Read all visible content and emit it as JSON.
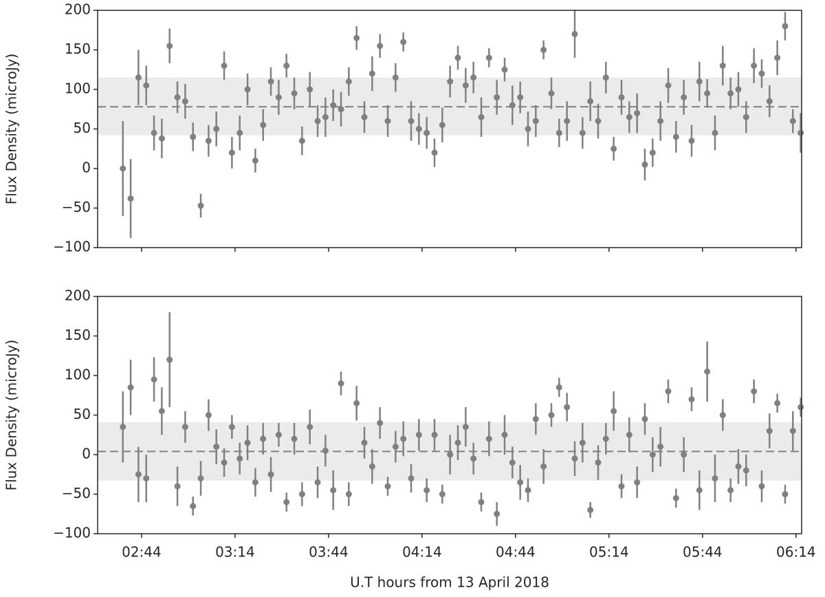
{
  "chart_data": [
    {
      "type": "errorbar",
      "ylabel": "Flux Density (microJy)",
      "color": "#808080",
      "band_color": "#ebebeb",
      "mean": 78,
      "band": [
        42,
        115
      ],
      "xlim": [
        149.9,
        375.8
      ],
      "ylim": [
        -100,
        200
      ],
      "yticks": [
        {
          "value": -100,
          "label": "−100"
        },
        {
          "value": -50,
          "label": "−50"
        },
        0,
        50,
        100,
        150,
        200
      ],
      "x": [
        158,
        160.5,
        163,
        165.5,
        168,
        170.5,
        173,
        175.5,
        178,
        180.5,
        183,
        185.5,
        188,
        190.5,
        193,
        195.5,
        198,
        200.5,
        203,
        205.5,
        208,
        210.5,
        213,
        215.5,
        218,
        220.5,
        223,
        225.5,
        228,
        230.5,
        233,
        235.5,
        238,
        240.5,
        243,
        245.5,
        248,
        250.5,
        253,
        255.5,
        258,
        260.5,
        263,
        265.5,
        268,
        270.5,
        273,
        275.5,
        278,
        280.5,
        283,
        285.5,
        288,
        290.5,
        293,
        295.5,
        298,
        300.5,
        303,
        305.5,
        308,
        310.5,
        313,
        315.5,
        318,
        320.5,
        323,
        325.5,
        328,
        330.5,
        333,
        335.5,
        338,
        340.5,
        343,
        345.5,
        348,
        350.5,
        353,
        355.5,
        358,
        360.5,
        363,
        365.5,
        368,
        370.5,
        373,
        375.5
      ],
      "values": [
        0,
        -38,
        115,
        105,
        45,
        38,
        155,
        90,
        85,
        40,
        -47,
        35,
        50,
        130,
        20,
        45,
        100,
        10,
        55,
        110,
        90,
        130,
        95,
        35,
        100,
        60,
        65,
        80,
        75,
        110,
        165,
        65,
        120,
        155,
        60,
        115,
        160,
        60,
        50,
        45,
        20,
        55,
        110,
        140,
        105,
        115,
        65,
        140,
        90,
        125,
        80,
        90,
        50,
        60,
        150,
        95,
        45,
        60,
        170,
        45,
        85,
        60,
        115,
        25,
        90,
        65,
        70,
        5,
        20,
        60,
        105,
        40,
        90,
        35,
        110,
        95,
        45,
        130,
        95,
        100,
        65,
        130,
        120,
        85,
        140,
        180,
        60,
        45
      ],
      "errors": [
        60,
        50,
        35,
        25,
        22,
        25,
        22,
        20,
        22,
        18,
        15,
        20,
        22,
        18,
        20,
        22,
        20,
        15,
        20,
        18,
        22,
        15,
        20,
        18,
        22,
        20,
        25,
        20,
        22,
        18,
        15,
        20,
        22,
        15,
        20,
        18,
        12,
        25,
        20,
        20,
        18,
        22,
        20,
        15,
        22,
        20,
        25,
        12,
        22,
        15,
        25,
        20,
        22,
        20,
        12,
        20,
        18,
        25,
        30,
        20,
        25,
        22,
        20,
        15,
        22,
        20,
        25,
        20,
        18,
        25,
        22,
        20,
        22,
        20,
        25,
        18,
        22,
        25,
        20,
        22,
        20,
        22,
        18,
        20,
        22,
        18,
        15,
        25
      ]
    },
    {
      "type": "errorbar",
      "ylabel": "Flux Density (microJy)",
      "xlabel": "U.T hours from 13 April 2018",
      "color": "#808080",
      "band_color": "#ebebeb",
      "mean": 4,
      "band": [
        -33,
        41
      ],
      "xlim": [
        149.9,
        375.8
      ],
      "ylim": [
        -100,
        200
      ],
      "xticks": [
        {
          "value": 164,
          "label": "02:44"
        },
        {
          "value": 194,
          "label": "03:14"
        },
        {
          "value": 224,
          "label": "03:44"
        },
        {
          "value": 254,
          "label": "04:14"
        },
        {
          "value": 284,
          "label": "04:44"
        },
        {
          "value": 314,
          "label": "05:14"
        },
        {
          "value": 344,
          "label": "05:44"
        },
        {
          "value": 374,
          "label": "06:14"
        }
      ],
      "yticks": [
        {
          "value": -100,
          "label": "−100"
        },
        {
          "value": -50,
          "label": "−50"
        },
        0,
        50,
        100,
        150,
        200
      ],
      "x": [
        158,
        160.5,
        163,
        165.5,
        168,
        170.5,
        173,
        175.5,
        178,
        180.5,
        183,
        185.5,
        188,
        190.5,
        193,
        195.5,
        198,
        200.5,
        203,
        205.5,
        208,
        210.5,
        213,
        215.5,
        218,
        220.5,
        223,
        225.5,
        228,
        230.5,
        233,
        235.5,
        238,
        240.5,
        243,
        245.5,
        248,
        250.5,
        253,
        255.5,
        258,
        260.5,
        263,
        265.5,
        268,
        270.5,
        273,
        275.5,
        278,
        280.5,
        283,
        285.5,
        288,
        290.5,
        293,
        295.5,
        298,
        300.5,
        303,
        305.5,
        308,
        310.5,
        313,
        315.5,
        318,
        320.5,
        323,
        325.5,
        328,
        330.5,
        333,
        335.5,
        338,
        340.5,
        343,
        345.5,
        348,
        350.5,
        353,
        355.5,
        358,
        360.5,
        363,
        365.5,
        368,
        370.5,
        373,
        375.5
      ],
      "values": [
        35,
        85,
        -25,
        -30,
        95,
        55,
        120,
        -40,
        35,
        -65,
        -30,
        50,
        10,
        -10,
        35,
        -5,
        15,
        -35,
        20,
        -25,
        25,
        -60,
        20,
        -50,
        35,
        -35,
        5,
        -45,
        90,
        -50,
        65,
        15,
        -15,
        40,
        -40,
        10,
        20,
        -30,
        25,
        -45,
        25,
        -50,
        0,
        15,
        35,
        -5,
        -60,
        20,
        -75,
        25,
        -10,
        -35,
        -45,
        45,
        -15,
        50,
        85,
        60,
        -5,
        15,
        -70,
        -10,
        20,
        55,
        -40,
        25,
        -35,
        45,
        0,
        10,
        80,
        -55,
        0,
        70,
        -45,
        105,
        -30,
        50,
        -45,
        -15,
        -20,
        80,
        -40,
        30,
        65,
        -50,
        30,
        60
      ],
      "errors": [
        45,
        35,
        35,
        30,
        28,
        30,
        60,
        25,
        20,
        12,
        22,
        20,
        22,
        18,
        15,
        20,
        22,
        18,
        20,
        22,
        15,
        12,
        20,
        15,
        22,
        20,
        20,
        25,
        15,
        15,
        22,
        20,
        22,
        20,
        12,
        20,
        22,
        18,
        20,
        15,
        20,
        12,
        25,
        22,
        25,
        20,
        12,
        22,
        15,
        25,
        20,
        22,
        15,
        20,
        22,
        15,
        12,
        18,
        22,
        25,
        10,
        22,
        20,
        25,
        15,
        22,
        20,
        20,
        22,
        25,
        15,
        12,
        22,
        15,
        25,
        38,
        30,
        20,
        15,
        22,
        20,
        15,
        20,
        22,
        12,
        12,
        25,
        12
      ]
    }
  ]
}
